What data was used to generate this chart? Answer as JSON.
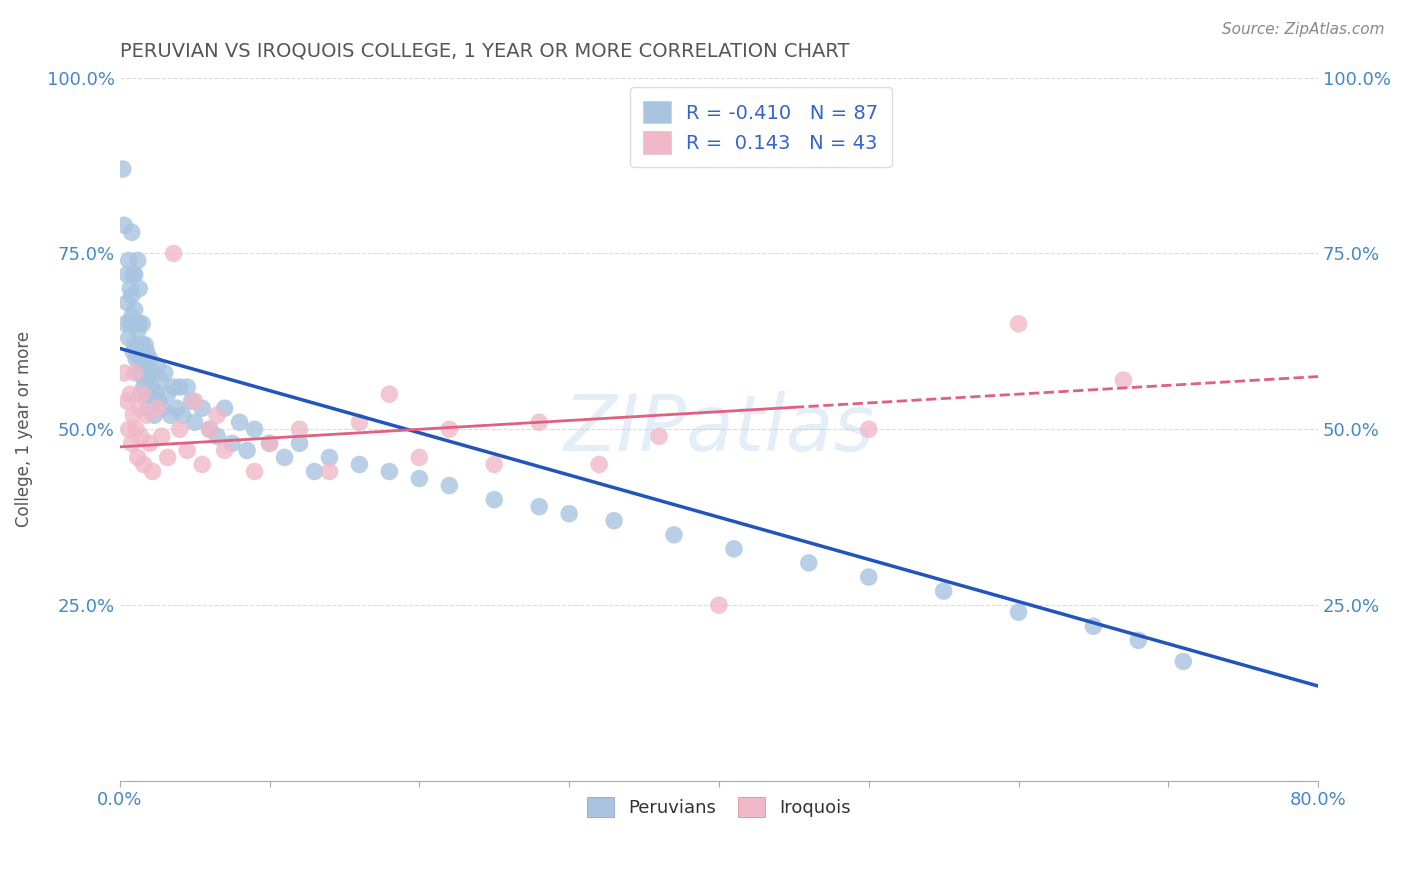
{
  "title": "PERUVIAN VS IROQUOIS COLLEGE, 1 YEAR OR MORE CORRELATION CHART",
  "source": "Source: ZipAtlas.com",
  "ylabel": "College, 1 year or more",
  "xlim": [
    0.0,
    0.8
  ],
  "ylim": [
    0.0,
    1.0
  ],
  "xticks": [
    0.0,
    0.1,
    0.2,
    0.3,
    0.4,
    0.5,
    0.6,
    0.7,
    0.8
  ],
  "xticklabels": [
    "0.0%",
    "",
    "",
    "",
    "",
    "",
    "",
    "",
    "80.0%"
  ],
  "yticks": [
    0.0,
    0.25,
    0.5,
    0.75,
    1.0
  ],
  "yticklabels": [
    "",
    "25.0%",
    "50.0%",
    "75.0%",
    "100.0%"
  ],
  "legend_labels": [
    "Peruvians",
    "Iroquois"
  ],
  "R_peruvian": -0.41,
  "N_peruvian": 87,
  "R_iroquois": 0.143,
  "N_iroquois": 43,
  "blue_color": "#a8c4e0",
  "pink_color": "#f0b8c8",
  "blue_line_color": "#2255bb",
  "pink_line_color": "#e06080",
  "watermark": "ZIPatlas",
  "title_color": "#555555",
  "axis_label_color": "#4488cc",
  "blue_line_y0": 0.615,
  "blue_line_y1": 0.135,
  "pink_line_y0": 0.475,
  "pink_line_y1": 0.575,
  "peruvian_x": [
    0.002,
    0.003,
    0.004,
    0.005,
    0.005,
    0.006,
    0.006,
    0.007,
    0.007,
    0.008,
    0.008,
    0.008,
    0.009,
    0.009,
    0.01,
    0.01,
    0.01,
    0.011,
    0.011,
    0.012,
    0.012,
    0.013,
    0.013,
    0.013,
    0.014,
    0.014,
    0.015,
    0.015,
    0.015,
    0.016,
    0.016,
    0.017,
    0.017,
    0.018,
    0.018,
    0.019,
    0.019,
    0.02,
    0.02,
    0.021,
    0.022,
    0.023,
    0.024,
    0.025,
    0.026,
    0.027,
    0.028,
    0.03,
    0.032,
    0.034,
    0.036,
    0.038,
    0.04,
    0.042,
    0.045,
    0.048,
    0.05,
    0.055,
    0.06,
    0.065,
    0.07,
    0.075,
    0.08,
    0.085,
    0.09,
    0.1,
    0.11,
    0.12,
    0.13,
    0.14,
    0.16,
    0.18,
    0.2,
    0.22,
    0.25,
    0.28,
    0.3,
    0.33,
    0.37,
    0.41,
    0.46,
    0.5,
    0.55,
    0.6,
    0.65,
    0.68,
    0.71
  ],
  "peruvian_y": [
    0.87,
    0.79,
    0.65,
    0.72,
    0.68,
    0.63,
    0.74,
    0.7,
    0.65,
    0.78,
    0.69,
    0.66,
    0.72,
    0.61,
    0.67,
    0.62,
    0.72,
    0.65,
    0.6,
    0.74,
    0.64,
    0.7,
    0.58,
    0.65,
    0.6,
    0.55,
    0.62,
    0.58,
    0.65,
    0.6,
    0.56,
    0.62,
    0.57,
    0.61,
    0.55,
    0.58,
    0.53,
    0.6,
    0.55,
    0.56,
    0.58,
    0.52,
    0.55,
    0.59,
    0.54,
    0.57,
    0.53,
    0.58,
    0.55,
    0.52,
    0.56,
    0.53,
    0.56,
    0.52,
    0.56,
    0.54,
    0.51,
    0.53,
    0.5,
    0.49,
    0.53,
    0.48,
    0.51,
    0.47,
    0.5,
    0.48,
    0.46,
    0.48,
    0.44,
    0.46,
    0.45,
    0.44,
    0.43,
    0.42,
    0.4,
    0.39,
    0.38,
    0.37,
    0.35,
    0.33,
    0.31,
    0.29,
    0.27,
    0.24,
    0.22,
    0.2,
    0.17
  ],
  "iroquois_x": [
    0.003,
    0.005,
    0.006,
    0.007,
    0.008,
    0.009,
    0.01,
    0.011,
    0.012,
    0.013,
    0.014,
    0.015,
    0.016,
    0.018,
    0.02,
    0.022,
    0.025,
    0.028,
    0.032,
    0.036,
    0.04,
    0.045,
    0.05,
    0.055,
    0.06,
    0.065,
    0.07,
    0.09,
    0.1,
    0.12,
    0.14,
    0.16,
    0.18,
    0.2,
    0.22,
    0.25,
    0.28,
    0.32,
    0.36,
    0.4,
    0.5,
    0.6,
    0.67
  ],
  "iroquois_y": [
    0.58,
    0.54,
    0.5,
    0.55,
    0.48,
    0.52,
    0.58,
    0.5,
    0.46,
    0.53,
    0.49,
    0.55,
    0.45,
    0.52,
    0.48,
    0.44,
    0.53,
    0.49,
    0.46,
    0.75,
    0.5,
    0.47,
    0.54,
    0.45,
    0.5,
    0.52,
    0.47,
    0.44,
    0.48,
    0.5,
    0.44,
    0.51,
    0.55,
    0.46,
    0.5,
    0.45,
    0.51,
    0.45,
    0.49,
    0.25,
    0.5,
    0.65,
    0.57
  ]
}
